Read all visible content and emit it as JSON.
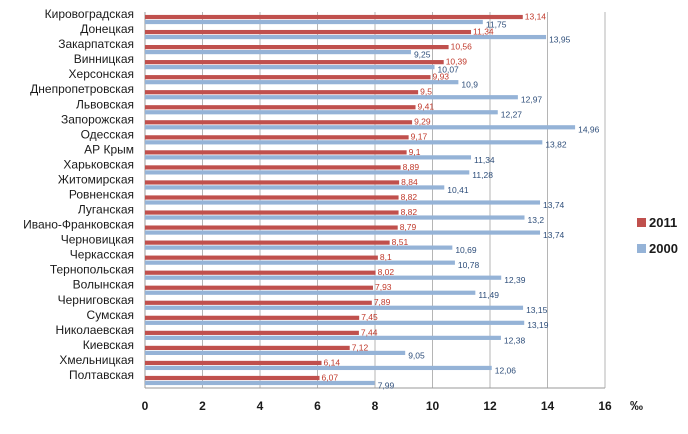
{
  "chart_data": {
    "type": "bar",
    "orientation": "horizontal",
    "categories": [
      "Кировоградская",
      "Донецкая",
      "Закарпатская",
      "Винницкая",
      "Херсонская",
      "Днепропетровская",
      "Львовская",
      "Запорожская",
      "Одесская",
      "АР Крым",
      "Харьковская",
      "Житомирская",
      "Ровненская",
      "Луганская",
      "Ивано-Франковская",
      "Черновицкая",
      "Черкасская",
      "Тернопольская",
      "Волынская",
      "Черниговская",
      "Сумская",
      "Николаевская",
      "Киевская",
      "Хмельницкая",
      "Полтавская"
    ],
    "series": [
      {
        "name": "2011",
        "color": "#c0504d",
        "values": [
          13.14,
          11.34,
          10.56,
          10.39,
          9.93,
          9.5,
          9.41,
          9.29,
          9.17,
          9.1,
          8.89,
          8.84,
          8.82,
          8.82,
          8.79,
          8.51,
          8.1,
          8.02,
          7.93,
          7.89,
          7.45,
          7.44,
          7.12,
          6.14,
          6.07
        ]
      },
      {
        "name": "2000",
        "color": "#95b3d7",
        "values": [
          11.75,
          13.95,
          9.25,
          10.07,
          10.9,
          12.97,
          12.27,
          14.96,
          13.82,
          11.34,
          11.28,
          10.41,
          13.74,
          13.2,
          13.74,
          10.69,
          10.78,
          12.39,
          11.49,
          13.15,
          13.19,
          12.38,
          9.05,
          12.06,
          7.99
        ]
      }
    ],
    "value_labels_2011": [
      "13,14",
      "11,34",
      "10,56",
      "10,39",
      "9,93",
      "9,5",
      "9,41",
      "9,29",
      "9,17",
      "9,1",
      "8,89",
      "8,84",
      "8,82",
      "8,82",
      "8,79",
      "8,51",
      "8,1",
      "8,02",
      "7,93",
      "7,89",
      "7,45",
      "7,44",
      "7,12",
      "6,14",
      "6,07"
    ],
    "value_labels_2000": [
      "11,75",
      "13,95",
      "9,25",
      "10,07",
      "10,9",
      "12,97",
      "12,27",
      "14,96",
      "13,82",
      "11,34",
      "11,28",
      "10,41",
      "13,74",
      "13,2",
      "13,74",
      "10,69",
      "10,78",
      "12,39",
      "11,49",
      "13,15",
      "13,19",
      "12,38",
      "9,05",
      "12,06",
      "7,99"
    ],
    "xlim": [
      0,
      16
    ],
    "x_ticks": [
      "0",
      "2",
      "4",
      "6",
      "8",
      "10",
      "12",
      "14",
      "16"
    ],
    "unit": "‰",
    "grid": "vertical",
    "legend_position": "right"
  }
}
